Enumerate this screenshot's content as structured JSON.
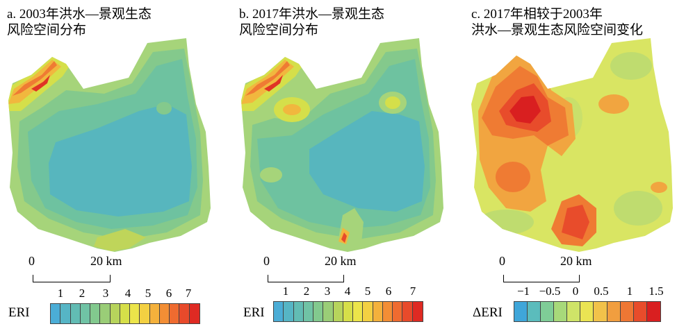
{
  "panels": [
    {
      "title_line1": "a. 2003年洪水—景观生态",
      "title_line2": "风险空间分布",
      "scale": {
        "zero": "0",
        "dist": "20 km"
      },
      "legend": {
        "label": "ERI",
        "ticks": [
          "1",
          "2",
          "3",
          "4",
          "5",
          "6",
          "7"
        ],
        "colors": [
          "#4badd6",
          "#56b5c5",
          "#62bcb4",
          "#70c3a5",
          "#82c98e",
          "#9acd77",
          "#b7d45c",
          "#d6df49",
          "#ece54a",
          "#f3d042",
          "#f4b13c",
          "#f38e35",
          "#ef6b30",
          "#e84a2b",
          "#df2a23"
        ]
      }
    },
    {
      "title_line1": "b. 2017年洪水—景观生态",
      "title_line2": "风险空间分布",
      "scale": {
        "zero": "0",
        "dist": "20 km"
      },
      "legend": {
        "label": "ERI",
        "ticks": [
          "1",
          "2",
          "3",
          "4",
          "5",
          "6",
          "7"
        ],
        "colors": [
          "#4badd6",
          "#56b5c5",
          "#62bcb4",
          "#70c3a5",
          "#82c98e",
          "#9acd77",
          "#b7d45c",
          "#d6df49",
          "#ece54a",
          "#f3d042",
          "#f4b13c",
          "#f38e35",
          "#ef6b30",
          "#e84a2b",
          "#df2a23"
        ]
      }
    },
    {
      "title_line1": "c. 2017年相较于2003年",
      "title_line2": "洪水—景观生态风险空间变化",
      "scale": {
        "zero": "0",
        "dist": "20 km"
      },
      "legend": {
        "label": "ΔERI",
        "ticks": [
          "−1",
          "−0.5",
          "0",
          "0.5",
          "1",
          "1.5"
        ],
        "colors": [
          "#3fa6d9",
          "#5bbcbc",
          "#7fcd97",
          "#a7d97a",
          "#cfe468",
          "#eae453",
          "#f2c24a",
          "#f19e3f",
          "#ee7734",
          "#e84c2b",
          "#d91f20"
        ]
      }
    }
  ]
}
